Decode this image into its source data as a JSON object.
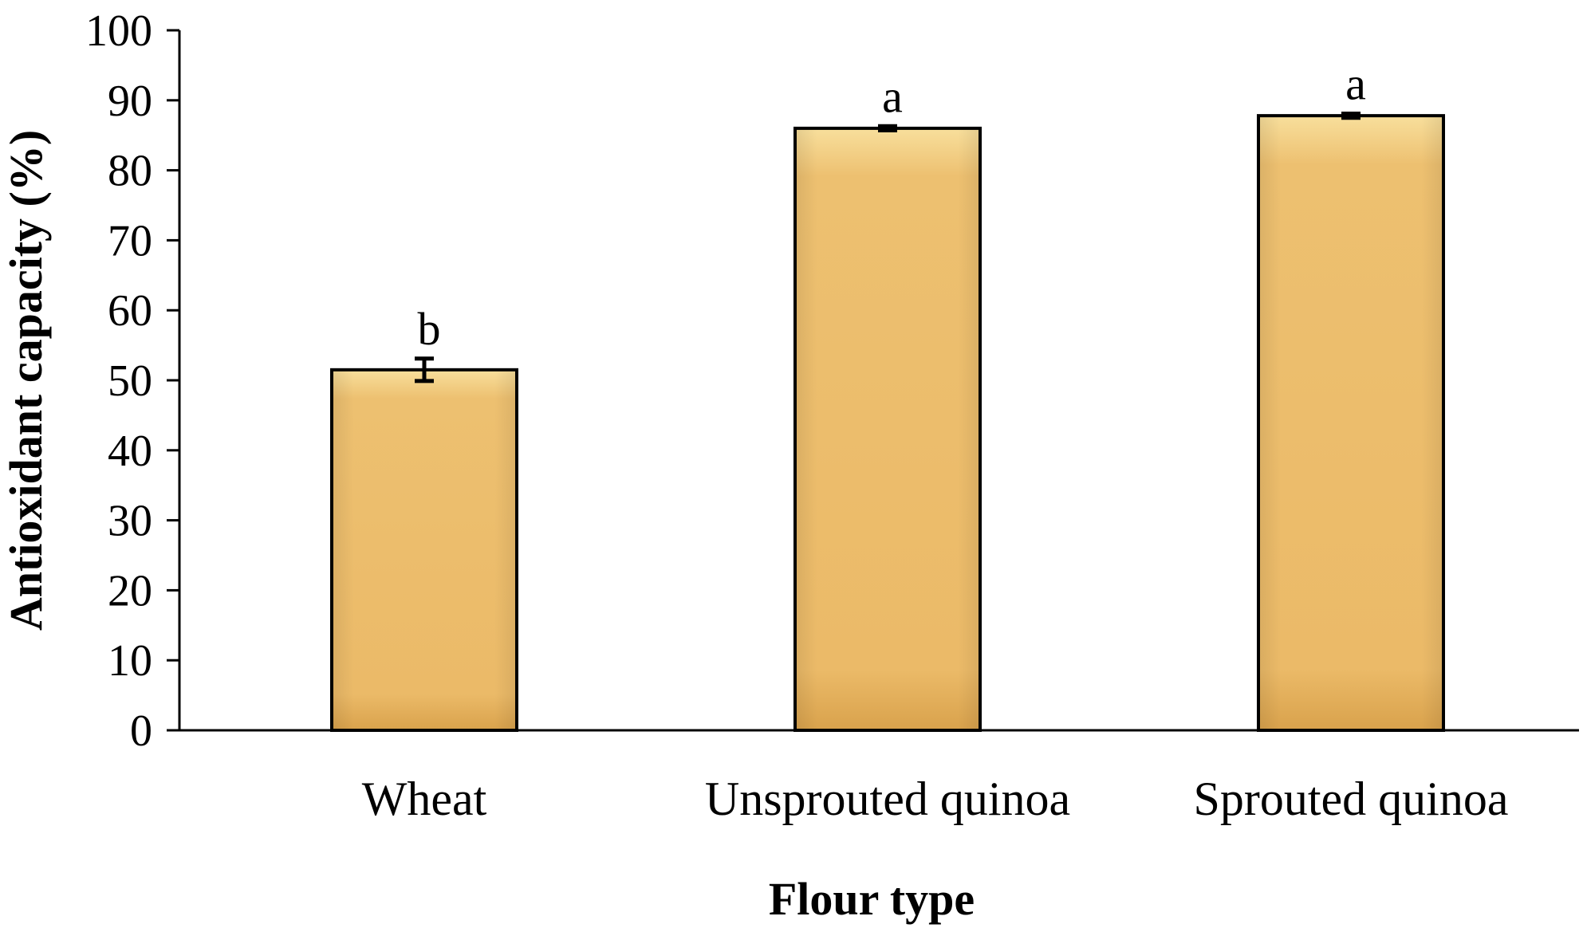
{
  "chart_data": {
    "type": "bar",
    "categories": [
      "Wheat",
      "Unsprouted quinoa",
      "Sprouted quinoa"
    ],
    "values": [
      51.5,
      86.0,
      87.8
    ],
    "errors": [
      1.6,
      0.3,
      0.3
    ],
    "significance_labels": [
      "b",
      "a",
      "a"
    ],
    "title": "",
    "xlabel": "Flour type",
    "ylabel": "Antioxidant capacity (%)",
    "ylim": [
      0,
      100
    ],
    "yticks": [
      "0",
      "10",
      "20",
      "30",
      "40",
      "50",
      "60",
      "70",
      "80",
      "90",
      "100"
    ],
    "grid": false,
    "legend": "none",
    "colors": {
      "bar_fill": "#EDBE6C",
      "bar_light": "#F7DC96",
      "bar_dark": "#D9A048",
      "bar_border": "#000000",
      "axis": "#000000"
    }
  }
}
